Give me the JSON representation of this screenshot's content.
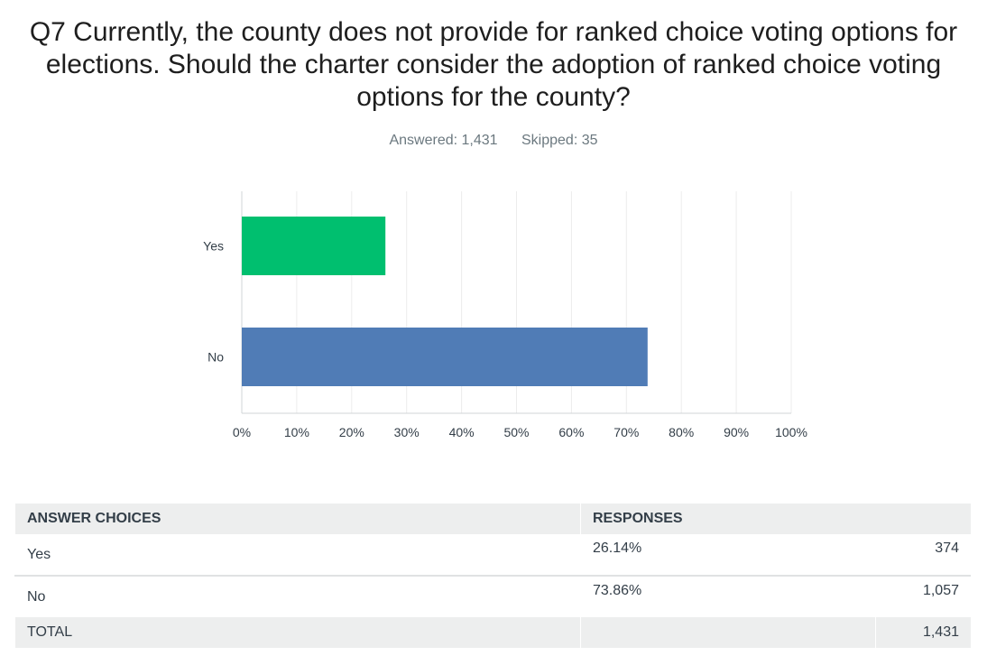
{
  "question": {
    "title": "Q7 Currently, the county does not provide for ranked choice voting options for elections. Should the charter consider the adoption of ranked choice voting options for the county?",
    "answered": "Answered: 1,431",
    "skipped": "Skipped: 35"
  },
  "chart_data": {
    "type": "bar",
    "orientation": "horizontal",
    "categories": [
      "Yes",
      "No"
    ],
    "values": [
      26.14,
      73.86
    ],
    "colors": [
      "#00bf6f",
      "#507cb6"
    ],
    "xlim": [
      0,
      100
    ],
    "xticks": [
      "0%",
      "10%",
      "20%",
      "30%",
      "40%",
      "50%",
      "60%",
      "70%",
      "80%",
      "90%",
      "100%"
    ],
    "grid": true
  },
  "table": {
    "headers": [
      "ANSWER CHOICES",
      "RESPONSES"
    ],
    "rows": [
      {
        "choice": "Yes",
        "percent": "26.14%",
        "count": "374"
      },
      {
        "choice": "No",
        "percent": "73.86%",
        "count": "1,057"
      }
    ],
    "total": {
      "label": "TOTAL",
      "count": "1,431"
    }
  }
}
